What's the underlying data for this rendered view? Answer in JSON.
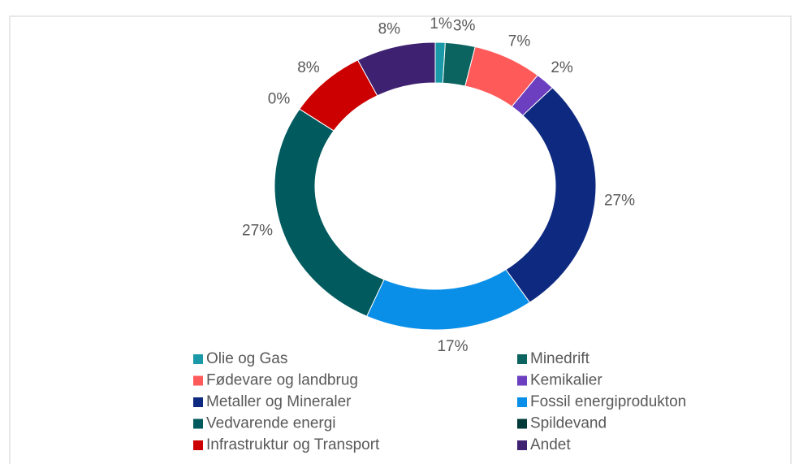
{
  "chart_data": {
    "type": "donut",
    "categories": [
      "Olie og Gas",
      "Minedrift",
      "Fødevare og landbrug",
      "Kemikalier",
      "Metaller og Mineraler",
      "Fossil energiprodukton",
      "Vedvarende energi",
      "Spildevand",
      "Infrastruktur og Transport",
      "Andet"
    ],
    "values": [
      1,
      3,
      7,
      2,
      27,
      17,
      27,
      0,
      8,
      8
    ],
    "value_labels": [
      "1%",
      "3%",
      "7%",
      "2%",
      "27%",
      "17%",
      "27%",
      "0%",
      "8%",
      "8%"
    ],
    "colors": [
      "#1a9aa8",
      "#0b6460",
      "#ff5a5a",
      "#6b3fc0",
      "#0e2a80",
      "#0a8fe8",
      "#005a5e",
      "#003a38",
      "#cc0000",
      "#3e2170"
    ],
    "legend": "bottom"
  }
}
